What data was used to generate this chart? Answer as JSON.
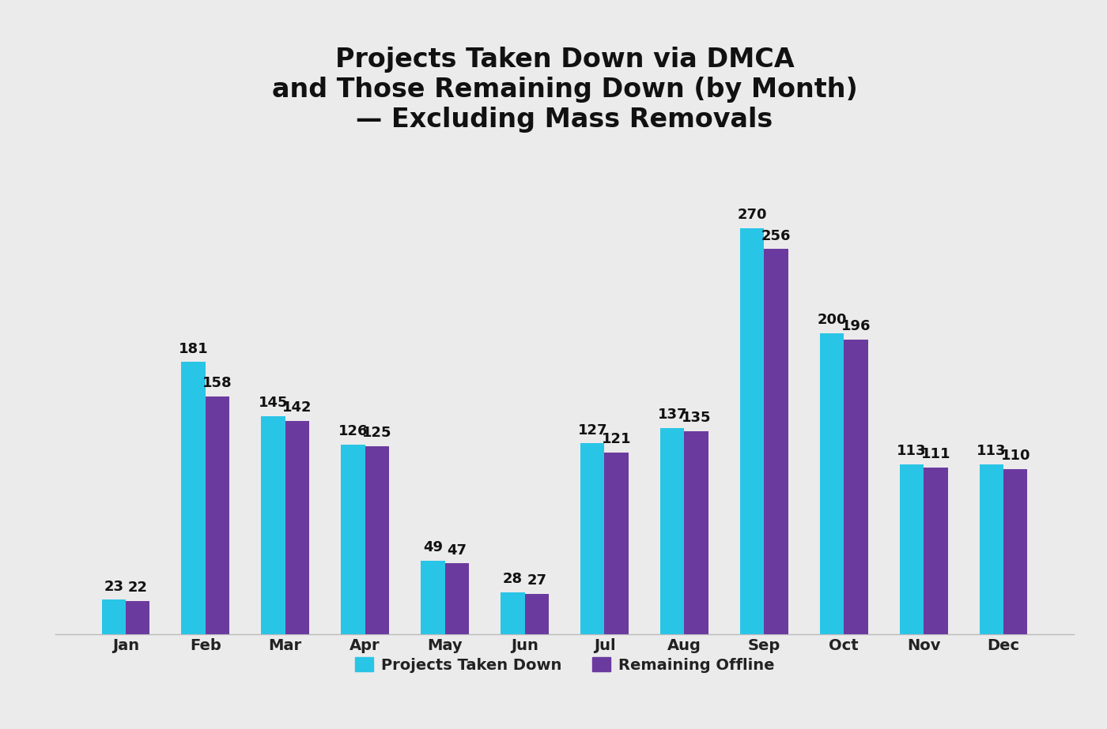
{
  "title_line1": "Projects Taken Down via DMCA",
  "title_line2": "and Those Remaining Down (by Month)",
  "title_line3": "— Excluding Mass Removals",
  "months": [
    "Jan",
    "Feb",
    "Mar",
    "Apr",
    "May",
    "Jun",
    "Jul",
    "Aug",
    "Sep",
    "Oct",
    "Nov",
    "Dec"
  ],
  "taken_down": [
    23,
    181,
    145,
    126,
    49,
    28,
    127,
    137,
    270,
    200,
    113,
    113
  ],
  "remaining_offline": [
    22,
    158,
    142,
    125,
    47,
    27,
    121,
    135,
    256,
    196,
    111,
    110
  ],
  "color_taken_down": "#29C5E6",
  "color_remaining": "#6B3A9E",
  "legend_label_1": "Projects Taken Down",
  "legend_label_2": "Remaining Offline",
  "background_color": "#EBEBEB",
  "bar_width": 0.3,
  "title_fontsize": 24,
  "tick_fontsize": 14,
  "label_fontsize": 13,
  "legend_fontsize": 14,
  "ylim": [
    0,
    315
  ]
}
